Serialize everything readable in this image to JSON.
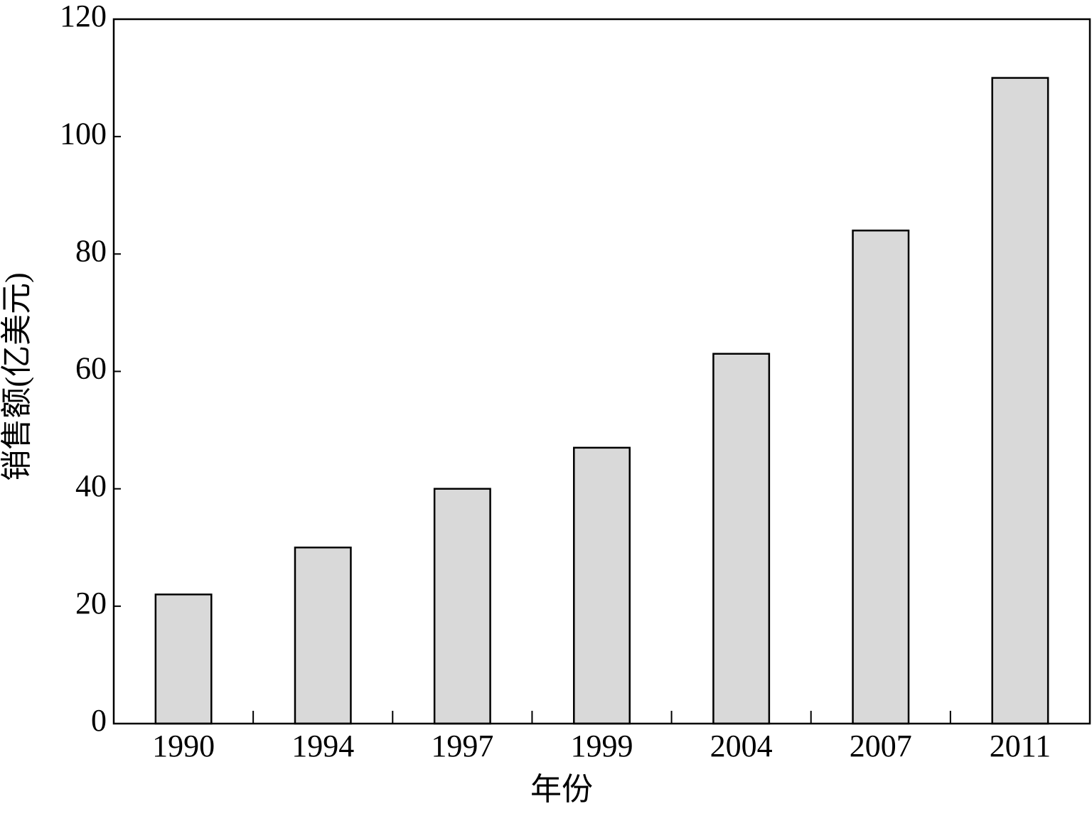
{
  "chart_data": {
    "type": "bar",
    "x_label": "年份",
    "y_label": "销售额(亿美元)",
    "categories": [
      "1990",
      "1994",
      "1997",
      "1999",
      "2004",
      "2007",
      "2011"
    ],
    "values": [
      22,
      30,
      40,
      47,
      63,
      84,
      110
    ],
    "color": "#d9d9d9",
    "ylim": [
      0,
      120
    ],
    "yticks": [
      0,
      20,
      40,
      60,
      80,
      100,
      120
    ],
    "grid": false
  }
}
